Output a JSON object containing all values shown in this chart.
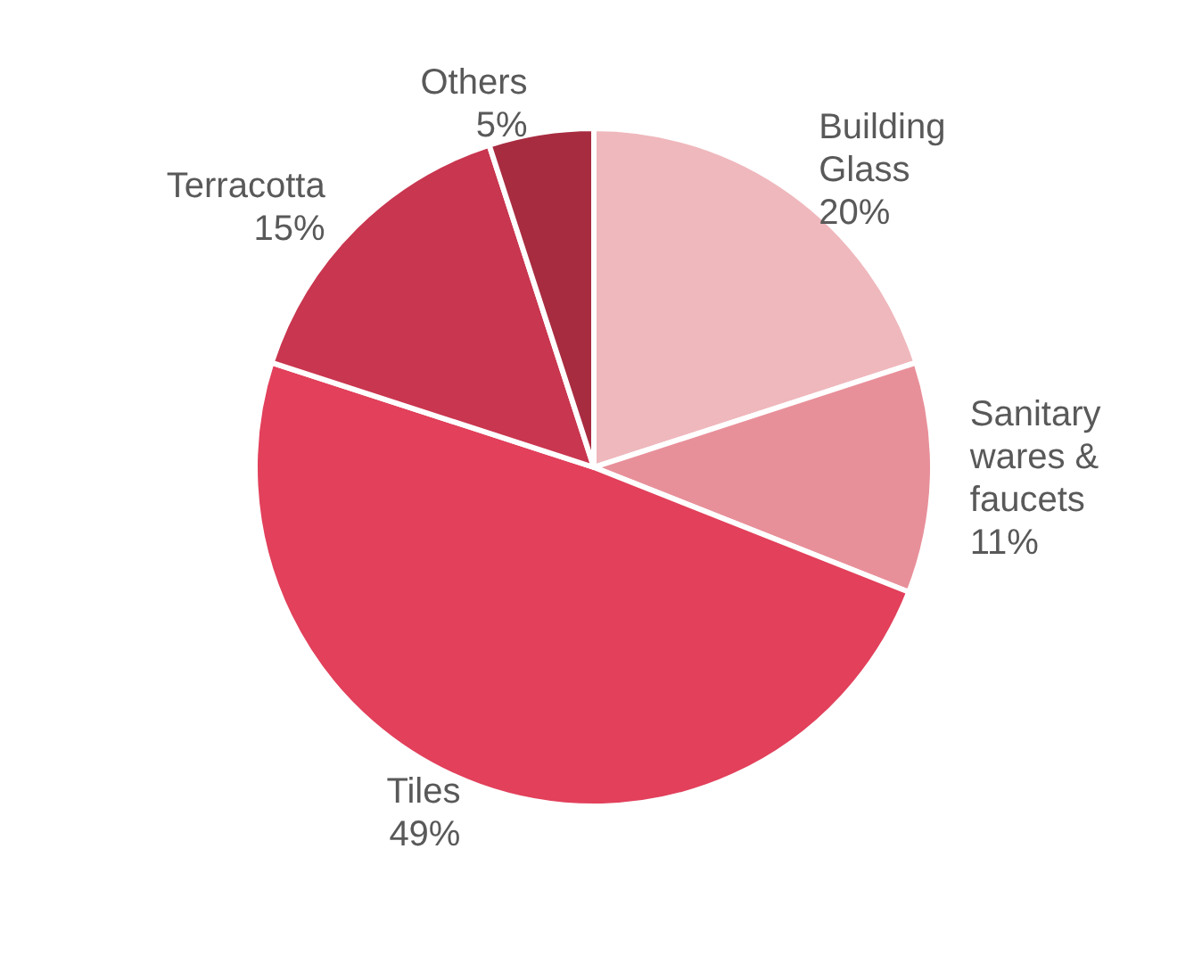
{
  "chart_data": {
    "type": "pie",
    "categories": [
      "Building Glass",
      "Sanitary wares & faucets",
      "Tiles",
      "Terracotta",
      "Others"
    ],
    "values": [
      20,
      11,
      49,
      15,
      5
    ],
    "value_labels": [
      "20%",
      "11%",
      "49%",
      "15%",
      "5%"
    ],
    "colors": [
      "#efb8bd",
      "#e8909a",
      "#e2405b",
      "#c9364f",
      "#a82c40"
    ]
  }
}
